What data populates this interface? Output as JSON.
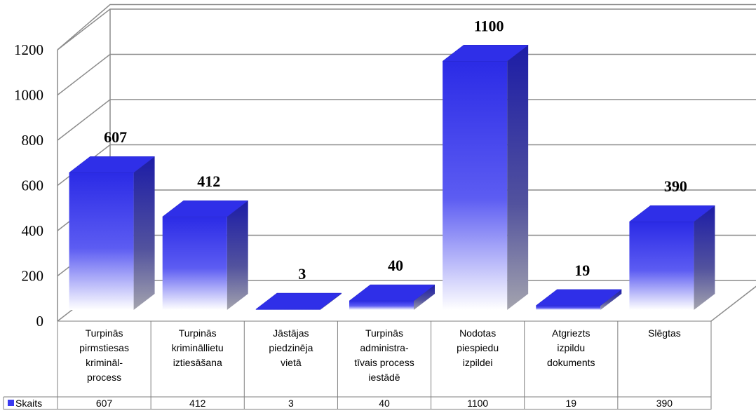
{
  "chart_data": {
    "type": "bar",
    "three_d": true,
    "categories": [
      [
        "Turpinās",
        "pirmstiesas",
        "krimināl-",
        "process"
      ],
      [
        "Turpinās",
        "krimināllietu",
        "iztiesāšana"
      ],
      [
        "Jāstājas",
        "piedzinēja",
        "vietā"
      ],
      [
        "Turpinās",
        "administra-",
        "tīvais process",
        "iestādē"
      ],
      [
        "Nodotas",
        "piespiedu",
        "izpildei"
      ],
      [
        "Atgriezts",
        "izpildu",
        "dokuments"
      ],
      [
        "Slēgtas"
      ]
    ],
    "series": [
      {
        "name": "Skaits",
        "values": [
          607,
          412,
          3,
          40,
          1100,
          19,
          390
        ]
      }
    ],
    "data_labels": [
      "607",
      "412",
      "3",
      "40",
      "1100",
      "19",
      "390"
    ],
    "table_values": [
      "607",
      "412",
      "3",
      "40",
      "1100",
      "19",
      "390"
    ],
    "yticks": [
      0,
      200,
      400,
      600,
      800,
      1000,
      1200
    ],
    "ylim": [
      0,
      1200
    ],
    "grid": true,
    "legend": "data-table",
    "colors": {
      "bar_top": "#2f2fe8",
      "bar_front_light": "#ffffff",
      "bar_front_mid": "#4a4af5",
      "bar_front_dark": "#2020d0",
      "bar_side_dark": "#1a1a9a",
      "bar_side_light": "#9a9aa8",
      "grid": "#8c8c8c",
      "legend_swatch": "#3a3af0"
    }
  }
}
